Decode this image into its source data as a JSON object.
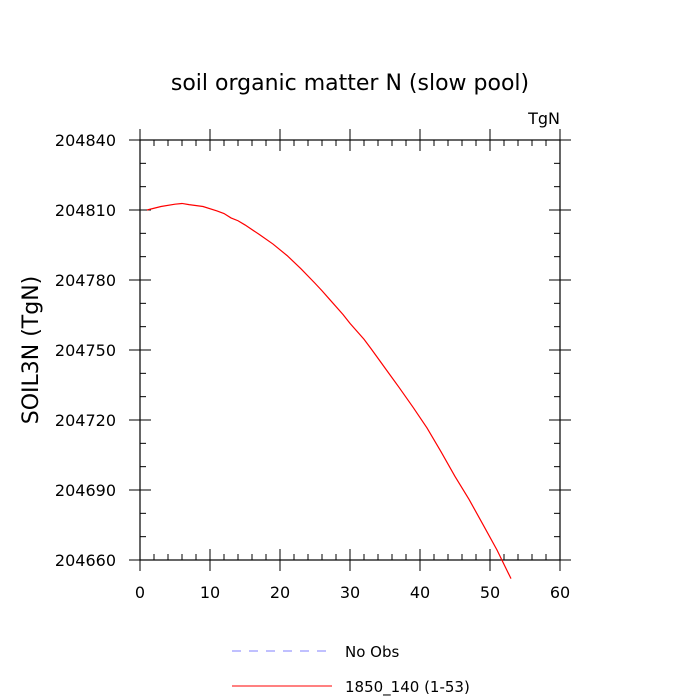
{
  "chart_data": {
    "type": "line",
    "title": "soil organic matter N (slow pool)",
    "units_label": "TgN",
    "ylabel": "SOIL3N  (TgN)",
    "xlabel": "",
    "xlim": [
      0,
      60
    ],
    "ylim": [
      204660,
      204840
    ],
    "x_ticks": [
      0,
      10,
      20,
      30,
      40,
      50,
      60
    ],
    "y_ticks": [
      204660,
      204690,
      204720,
      204750,
      204780,
      204810,
      204840
    ],
    "x_tick_labels": [
      "0",
      "10",
      "20",
      "30",
      "40",
      "50",
      "60"
    ],
    "y_tick_labels": [
      "204660",
      "204690",
      "204720",
      "204750",
      "204780",
      "204810",
      "204840"
    ],
    "grid": false,
    "legend_position": "bottom",
    "series": [
      {
        "name": "No Obs",
        "color": "#8080ff",
        "dash": "dashed",
        "x": [],
        "y": []
      },
      {
        "name": "1850_140 (1-53)",
        "color": "#ff0000",
        "dash": "solid",
        "x": [
          1,
          3,
          5,
          6,
          7,
          9,
          11,
          12,
          13,
          14,
          15,
          17,
          19,
          21,
          23,
          25,
          26,
          27,
          29,
          30,
          32,
          33,
          35,
          37,
          39,
          41,
          43,
          45,
          47,
          49,
          51,
          53
        ],
        "y": [
          204810,
          204811.5,
          204812.5,
          204812.8,
          204812.3,
          204811.5,
          204809.6,
          204808.5,
          204806.6,
          204805.4,
          204803.6,
          204799.6,
          204795.4,
          204790.5,
          204784.8,
          204778.6,
          204775.4,
          204772,
          204765.2,
          204761.4,
          204754.6,
          204750.6,
          204742.3,
          204734,
          204725.5,
          204716.6,
          204706.4,
          204695.8,
          204686,
          204675.2,
          204664.3,
          204652
        ]
      }
    ]
  }
}
